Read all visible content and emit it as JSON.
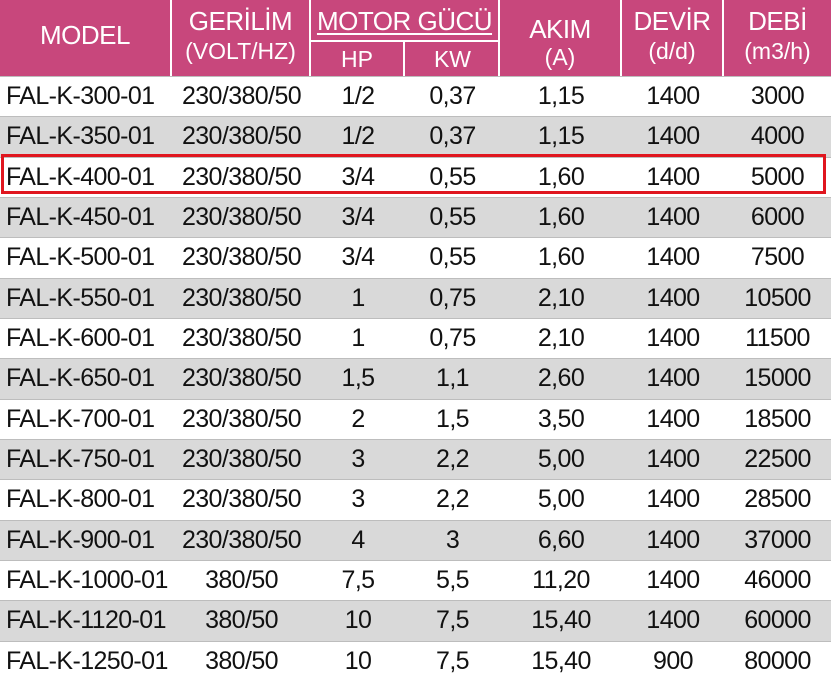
{
  "colors": {
    "header_bg": "#c8477c",
    "row_alt": "#d9d9d9",
    "highlight": "#e0161f"
  },
  "header": {
    "model": "MODEL",
    "gerilim": "GERİLİM",
    "gerilim_unit": "(VOLT/HZ)",
    "motor": "MOTOR GÜCÜ",
    "hp": "HP",
    "kw": "KW",
    "akim": "AKIM",
    "akim_unit": "(A)",
    "devir": "DEVİR",
    "devir_unit": "(d/d)",
    "debi": "DEBİ",
    "debi_unit": "(m3/h)"
  },
  "rows": [
    [
      "FAL-K-300-01",
      "230/380/50",
      "1/2",
      "0,37",
      "1,15",
      "1400",
      "3000"
    ],
    [
      "FAL-K-350-01",
      "230/380/50",
      "1/2",
      "0,37",
      "1,15",
      "1400",
      "4000"
    ],
    [
      "FAL-K-400-01",
      "230/380/50",
      "3/4",
      "0,55",
      "1,60",
      "1400",
      "5000"
    ],
    [
      "FAL-K-450-01",
      "230/380/50",
      "3/4",
      "0,55",
      "1,60",
      "1400",
      "6000"
    ],
    [
      "FAL-K-500-01",
      "230/380/50",
      "3/4",
      "0,55",
      "1,60",
      "1400",
      "7500"
    ],
    [
      "FAL-K-550-01",
      "230/380/50",
      "1",
      "0,75",
      "2,10",
      "1400",
      "10500"
    ],
    [
      "FAL-K-600-01",
      "230/380/50",
      "1",
      "0,75",
      "2,10",
      "1400",
      "11500"
    ],
    [
      "FAL-K-650-01",
      "230/380/50",
      "1,5",
      "1,1",
      "2,60",
      "1400",
      "15000"
    ],
    [
      "FAL-K-700-01",
      "230/380/50",
      "2",
      "1,5",
      "3,50",
      "1400",
      "18500"
    ],
    [
      "FAL-K-750-01",
      "230/380/50",
      "3",
      "2,2",
      "5,00",
      "1400",
      "22500"
    ],
    [
      "FAL-K-800-01",
      "230/380/50",
      "3",
      "2,2",
      "5,00",
      "1400",
      "28500"
    ],
    [
      "FAL-K-900-01",
      "230/380/50",
      "4",
      "3",
      "6,60",
      "1400",
      "37000"
    ],
    [
      "FAL-K-1000-01",
      "380/50",
      "7,5",
      "5,5",
      "11,20",
      "1400",
      "46000"
    ],
    [
      "FAL-K-1120-01",
      "380/50",
      "10",
      "7,5",
      "15,40",
      "1400",
      "60000"
    ],
    [
      "FAL-K-1250-01",
      "380/50",
      "10",
      "7,5",
      "15,40",
      "900",
      "80000"
    ]
  ],
  "highlighted_row": 2
}
